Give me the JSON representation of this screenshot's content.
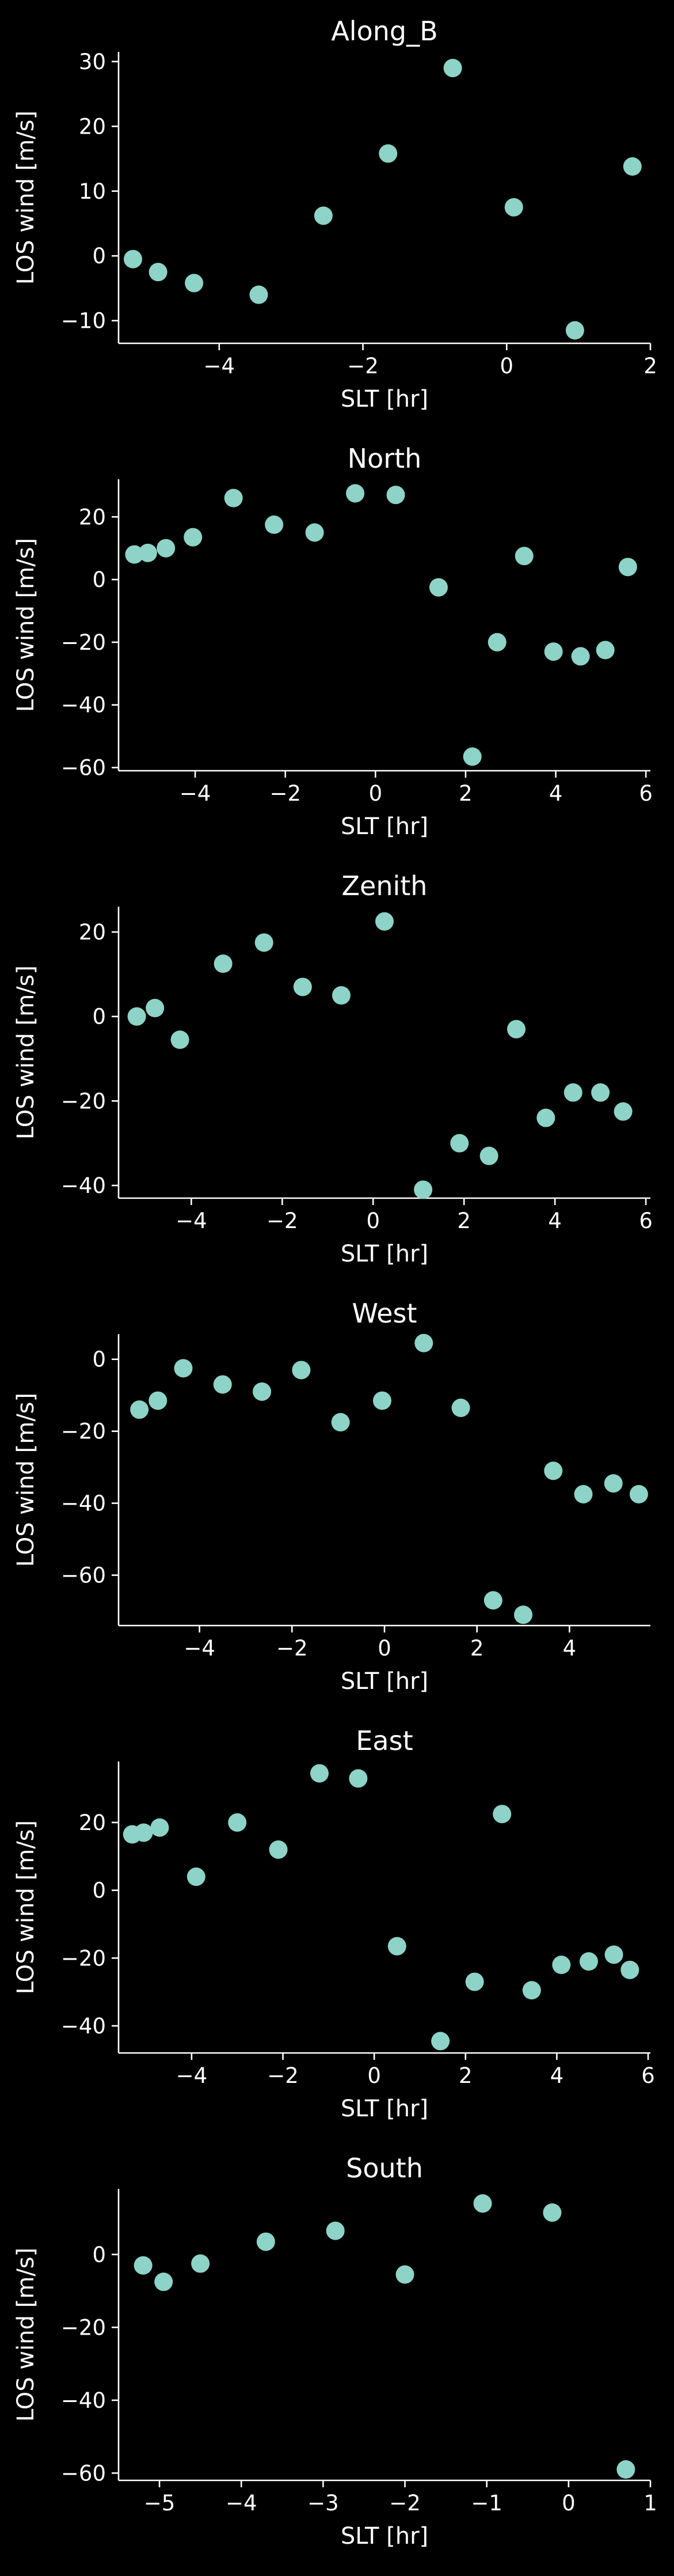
{
  "colors": {
    "background": "#000000",
    "marker": "#8dd3c7",
    "axes": "#ffffff"
  },
  "chart_data": [
    {
      "type": "scatter",
      "title": "Along_B",
      "xlabel": "SLT [hr]",
      "ylabel": "LOS wind [m/s]",
      "xlim": [
        -5.4,
        2.0
      ],
      "ylim": [
        -13.5,
        31.5
      ],
      "xticks": [
        -4,
        -2,
        0,
        2
      ],
      "xticklabels": [
        "−4",
        "−2",
        "0",
        "2"
      ],
      "yticks": [
        -10,
        0,
        10,
        20,
        30
      ],
      "yticklabels": [
        "−10",
        "0",
        "10",
        "20",
        "30"
      ],
      "grid": false,
      "x": [
        -5.2,
        -4.85,
        -4.35,
        -3.45,
        -2.55,
        -1.65,
        -0.75,
        0.1,
        0.95,
        1.75
      ],
      "y": [
        -0.5,
        -2.5,
        -4.2,
        -6.0,
        6.2,
        15.8,
        29.0,
        7.5,
        -11.5,
        13.8
      ]
    },
    {
      "type": "scatter",
      "title": "North",
      "xlabel": "SLT [hr]",
      "ylabel": "LOS wind [m/s]",
      "xlim": [
        -5.7,
        6.1
      ],
      "ylim": [
        -61,
        32
      ],
      "xticks": [
        -4,
        -2,
        0,
        2,
        4,
        6
      ],
      "xticklabels": [
        "−4",
        "−2",
        "0",
        "2",
        "4",
        "6"
      ],
      "yticks": [
        -60,
        -40,
        -20,
        0,
        20
      ],
      "yticklabels": [
        "−60",
        "−40",
        "−20",
        "0",
        "20"
      ],
      "grid": false,
      "x": [
        -5.35,
        -5.05,
        -4.65,
        -4.05,
        -3.15,
        -2.25,
        -1.35,
        -0.45,
        0.45,
        1.4,
        2.15,
        2.7,
        3.3,
        3.95,
        4.55,
        5.1,
        5.6
      ],
      "y": [
        8,
        8.5,
        10,
        13.5,
        26,
        17.5,
        15,
        27.5,
        27,
        -2.5,
        -56.5,
        -20,
        7.5,
        -23,
        -24.5,
        -22.5,
        4
      ]
    },
    {
      "type": "scatter",
      "title": "Zenith",
      "xlabel": "SLT [hr]",
      "ylabel": "LOS wind [m/s]",
      "xlim": [
        -5.6,
        6.1
      ],
      "ylim": [
        -43,
        26
      ],
      "xticks": [
        -4,
        -2,
        0,
        2,
        4,
        6
      ],
      "xticklabels": [
        "−4",
        "−2",
        "0",
        "2",
        "4",
        "6"
      ],
      "yticks": [
        -40,
        -20,
        0,
        20
      ],
      "yticklabels": [
        "−40",
        "−20",
        "0",
        "20"
      ],
      "grid": false,
      "x": [
        -5.2,
        -4.8,
        -4.25,
        -3.3,
        -2.4,
        -1.55,
        -0.7,
        0.25,
        1.1,
        1.9,
        2.55,
        3.15,
        3.8,
        4.4,
        5.0,
        5.5
      ],
      "y": [
        0,
        2,
        -5.5,
        12.5,
        17.5,
        7,
        5,
        22.5,
        -41,
        -30,
        -33,
        -3,
        -24,
        -18,
        -18,
        -22.5
      ]
    },
    {
      "type": "scatter",
      "title": "West",
      "xlabel": "SLT [hr]",
      "ylabel": "LOS wind [m/s]",
      "xlim": [
        -5.75,
        5.75
      ],
      "ylim": [
        -74,
        7
      ],
      "xticks": [
        -4,
        -2,
        0,
        2,
        4
      ],
      "xticklabels": [
        "−4",
        "−2",
        "0",
        "2",
        "4"
      ],
      "yticks": [
        -60,
        -40,
        -20,
        0
      ],
      "yticklabels": [
        "−60",
        "−40",
        "−20",
        "0"
      ],
      "grid": false,
      "x": [
        -5.3,
        -4.9,
        -4.35,
        -3.5,
        -2.65,
        -1.8,
        -0.95,
        -0.05,
        0.85,
        1.65,
        2.35,
        3.0,
        3.65,
        4.3,
        4.95,
        5.5
      ],
      "y": [
        -14,
        -11.5,
        -2.5,
        -7,
        -9,
        -3,
        -17.5,
        -11.5,
        4.5,
        -13.5,
        -67,
        -71,
        -31,
        -37.5,
        -34.5,
        -37.5
      ]
    },
    {
      "type": "scatter",
      "title": "East",
      "xlabel": "SLT [hr]",
      "ylabel": "LOS wind [m/s]",
      "xlim": [
        -5.6,
        6.05
      ],
      "ylim": [
        -48,
        38
      ],
      "xticks": [
        -4,
        -2,
        0,
        2,
        4,
        6
      ],
      "xticklabels": [
        "−4",
        "−2",
        "0",
        "2",
        "4",
        "6"
      ],
      "yticks": [
        -40,
        -20,
        0,
        20
      ],
      "yticklabels": [
        "−40",
        "−20",
        "0",
        "20"
      ],
      "grid": false,
      "x": [
        -5.3,
        -5.05,
        -4.7,
        -3.9,
        -3.0,
        -2.1,
        -1.2,
        -0.35,
        0.5,
        1.45,
        2.2,
        2.8,
        3.45,
        4.1,
        4.7,
        5.25,
        5.6
      ],
      "y": [
        16.5,
        17,
        18.5,
        4,
        20,
        12,
        34.5,
        33,
        -16.5,
        -44.5,
        -27,
        22.5,
        -29.5,
        -22,
        -21,
        -19,
        -23.5
      ]
    },
    {
      "type": "scatter",
      "title": "South",
      "xlabel": "SLT [hr]",
      "ylabel": "LOS wind [m/s]",
      "xlim": [
        -5.5,
        1.0
      ],
      "ylim": [
        -62,
        18
      ],
      "xticks": [
        -5,
        -4,
        -3,
        -2,
        -1,
        0,
        1
      ],
      "xticklabels": [
        "−5",
        "−4",
        "−3",
        "−2",
        "−1",
        "0",
        "1"
      ],
      "yticks": [
        -60,
        -40,
        -20,
        0
      ],
      "yticklabels": [
        "−60",
        "−40",
        "−20",
        "0"
      ],
      "grid": false,
      "x": [
        -5.2,
        -4.95,
        -4.5,
        -3.7,
        -2.85,
        -2.0,
        -1.05,
        -0.2,
        0.7
      ],
      "y": [
        -3,
        -7.5,
        -2.5,
        3.5,
        6.5,
        -5.5,
        14,
        11.5,
        -59
      ]
    }
  ]
}
